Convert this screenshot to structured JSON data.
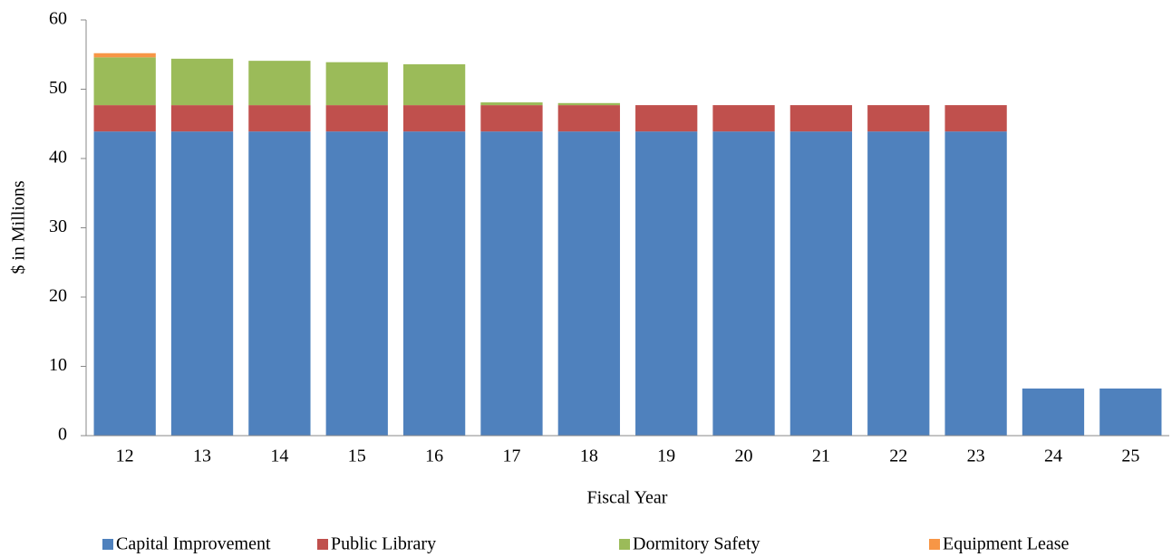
{
  "chart_data": {
    "type": "stacked_bar",
    "categories": [
      "12",
      "13",
      "14",
      "15",
      "16",
      "17",
      "18",
      "19",
      "20",
      "21",
      "22",
      "23",
      "24",
      "25"
    ],
    "series": [
      {
        "name": "Capital Improvement",
        "color": "#4f81bd",
        "values": [
          43.9,
          43.9,
          43.9,
          43.9,
          43.9,
          43.9,
          43.9,
          43.9,
          43.9,
          43.9,
          43.9,
          43.9,
          6.8,
          6.8
        ]
      },
      {
        "name": "Public Library",
        "color": "#c0504d",
        "values": [
          3.8,
          3.8,
          3.8,
          3.8,
          3.8,
          3.8,
          3.8,
          3.8,
          3.8,
          3.8,
          3.8,
          3.8,
          0,
          0
        ]
      },
      {
        "name": "Dormitory Safety",
        "color": "#9bbb59",
        "values": [
          6.9,
          6.7,
          6.4,
          6.2,
          5.9,
          0.4,
          0.3,
          0,
          0,
          0,
          0,
          0,
          0,
          0
        ]
      },
      {
        "name": "Equipment Lease",
        "color": "#f79646",
        "values": [
          0.6,
          0,
          0,
          0,
          0,
          0,
          0,
          0,
          0,
          0,
          0,
          0,
          0,
          0
        ]
      }
    ],
    "ylim": [
      0,
      60
    ],
    "yticks": [
      0,
      10,
      20,
      30,
      40,
      50,
      60
    ],
    "y_label": "$ in Millions",
    "x_label": "Fiscal Year",
    "legend": "bottom"
  }
}
